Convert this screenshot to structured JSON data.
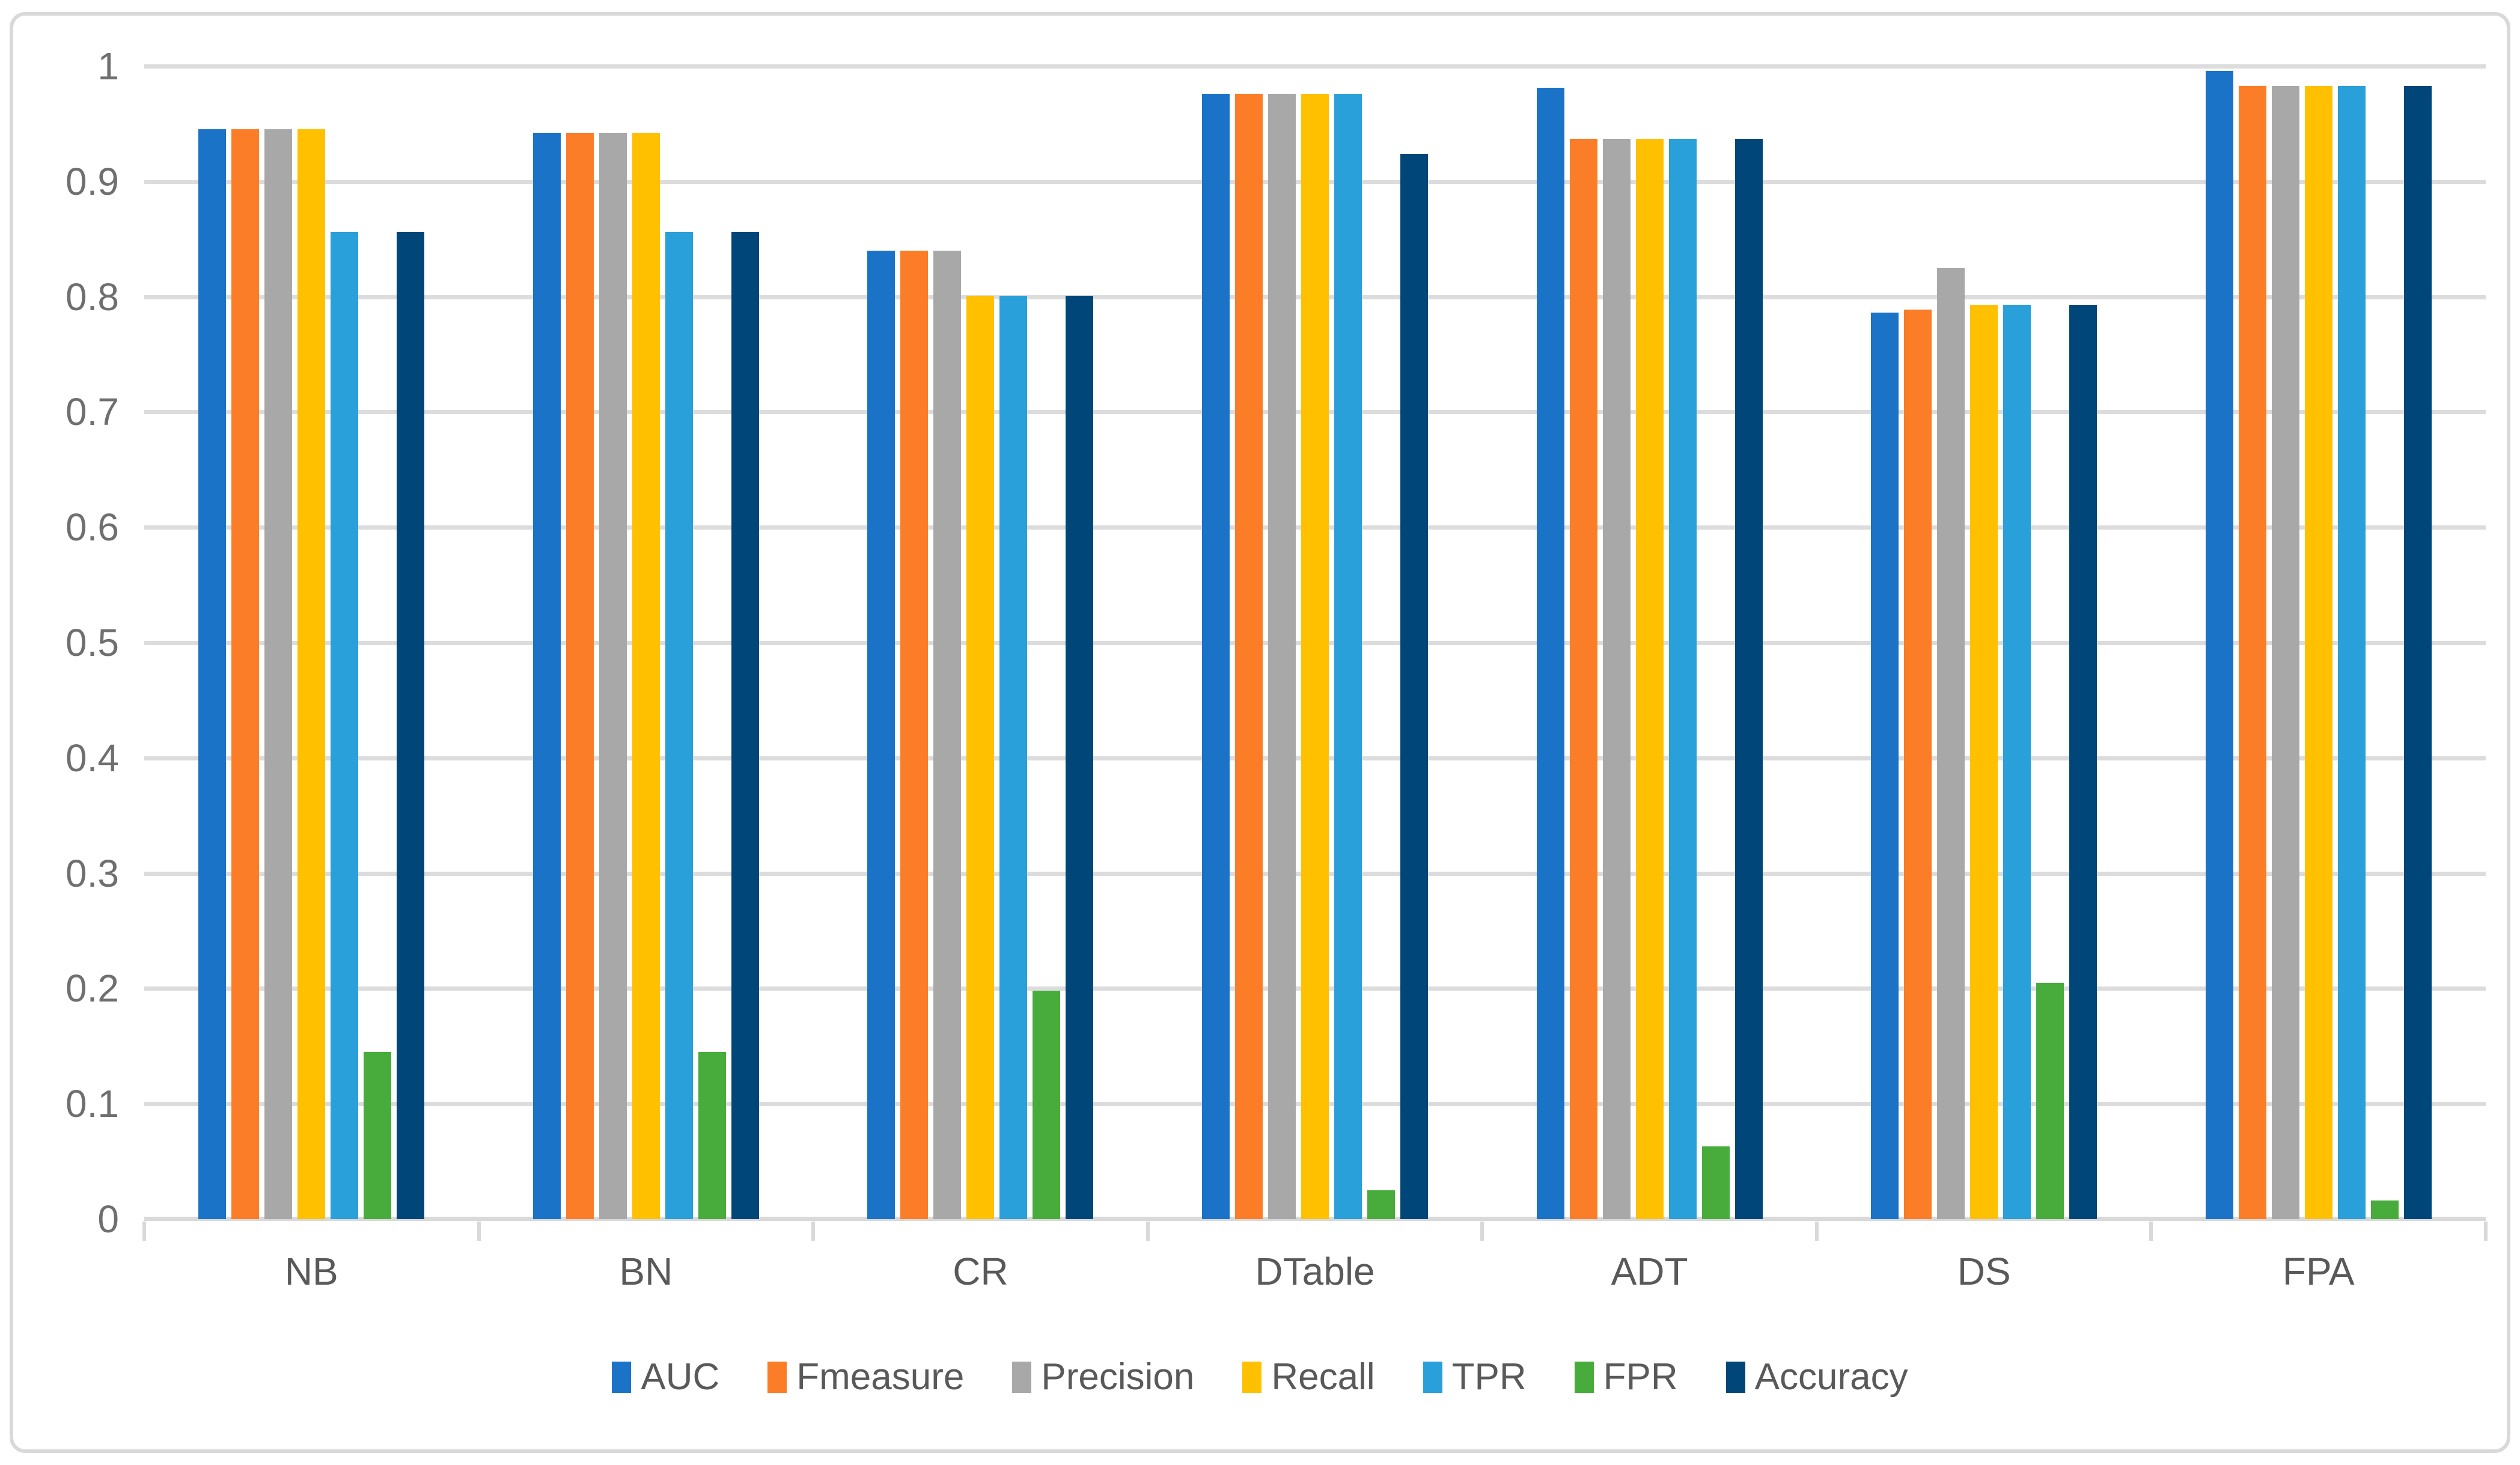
{
  "chart_data": {
    "type": "bar",
    "title": "",
    "xlabel": "",
    "ylabel": "",
    "categories": [
      "NB",
      "BN",
      "CR",
      "DTable",
      "ADT",
      "DS",
      "FPA"
    ],
    "series": [
      {
        "name": "AUC",
        "color": "#1b73c8",
        "values": [
          0.945,
          0.942,
          0.84,
          0.976,
          0.981,
          0.786,
          0.996
        ]
      },
      {
        "name": "Fmeasure",
        "color": "#fb7d27",
        "values": [
          0.945,
          0.942,
          0.84,
          0.976,
          0.937,
          0.789,
          0.983
        ]
      },
      {
        "name": "Precision",
        "color": "#a8a8a8",
        "values": [
          0.945,
          0.942,
          0.84,
          0.976,
          0.937,
          0.825,
          0.983
        ]
      },
      {
        "name": "Recall",
        "color": "#ffc000",
        "values": [
          0.945,
          0.942,
          0.801,
          0.976,
          0.937,
          0.793,
          0.983
        ]
      },
      {
        "name": "TPR",
        "color": "#29a0da",
        "values": [
          0.856,
          0.856,
          0.801,
          0.976,
          0.937,
          0.793,
          0.983
        ]
      },
      {
        "name": "FPR",
        "color": "#47ac3b",
        "values": [
          0.145,
          0.145,
          0.198,
          0.025,
          0.063,
          0.205,
          0.016
        ]
      },
      {
        "name": "Accuracy",
        "color": "#004679",
        "values": [
          0.856,
          0.856,
          0.801,
          0.924,
          0.937,
          0.793,
          0.983
        ]
      }
    ],
    "ylim": [
      0,
      1
    ],
    "ytick_step": 0.1,
    "ytick_labels": [
      "1",
      "0.9",
      "0.8",
      "0.7",
      "0.6",
      "0.5",
      "0.4",
      "0.3",
      "0.2",
      "0.1",
      "0"
    ],
    "grid": true,
    "gridline_color": "#dcdcdc",
    "axis_color": "#d9d9d9",
    "legend_position": "bottom"
  }
}
